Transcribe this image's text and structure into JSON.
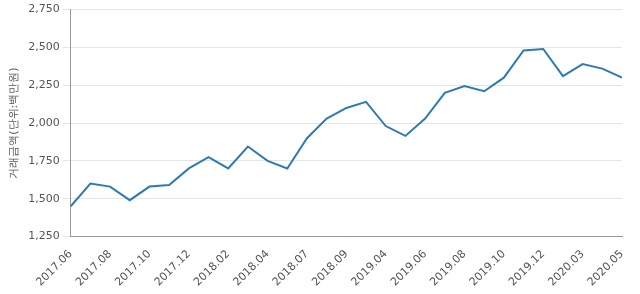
{
  "chart_data": {
    "type": "line",
    "y_label": "거래금액(단위:백만원)",
    "categories": [
      "2017.06",
      null,
      "2017.08",
      null,
      "2017.10",
      null,
      "2017.12",
      null,
      "2018.02",
      null,
      "2018.04",
      null,
      "2018.07",
      null,
      "2018.09",
      null,
      "2019.04",
      null,
      "2019.06",
      null,
      "2019.08",
      null,
      "2019.10",
      null,
      "2019.12",
      null,
      "2020.03",
      null,
      "2020.05"
    ],
    "values": [
      1450,
      1600,
      1580,
      1490,
      1580,
      1590,
      1700,
      1775,
      1700,
      1845,
      1750,
      1700,
      1900,
      2030,
      2100,
      2140,
      1980,
      1915,
      2030,
      2200,
      2245,
      2210,
      2300,
      2480,
      2490,
      2310,
      2390,
      2360,
      2300
    ],
    "color": "#2e7bb4",
    "ylim": [
      1250,
      2750
    ],
    "yticks": [
      {
        "value": 1250,
        "label": "1,250"
      },
      {
        "value": 1500,
        "label": "1,500"
      },
      {
        "value": 1750,
        "label": "1,750"
      },
      {
        "value": 2000,
        "label": "2,000"
      },
      {
        "value": 2250,
        "label": "2,250"
      },
      {
        "value": 2500,
        "label": "2,500"
      },
      {
        "value": 2750,
        "label": "2,750"
      }
    ],
    "grid": true
  }
}
